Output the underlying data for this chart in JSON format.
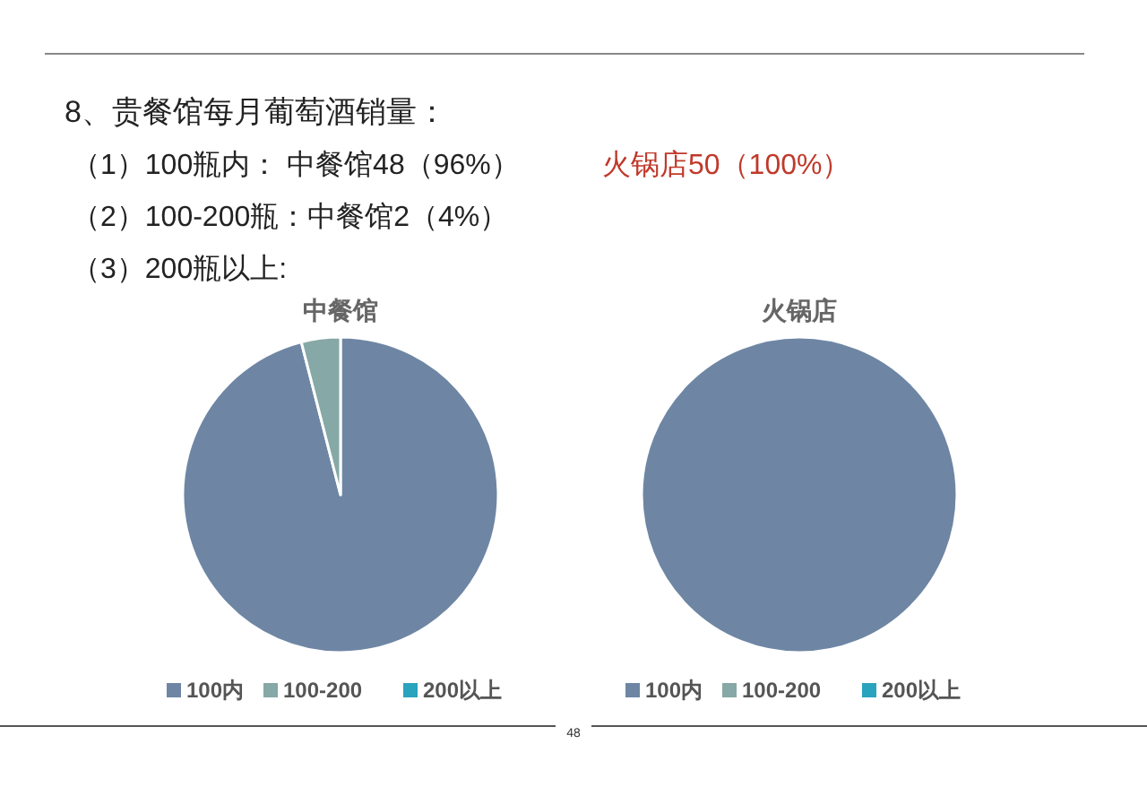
{
  "chart_data": [
    {
      "type": "other",
      "title": "8、贵餐馆每月葡萄酒销量：",
      "annotations": [
        "（1）100瓶内：    中餐馆48（96%）",
        "火锅店50（100%）",
        "（2）100-200瓶：中餐馆2（4%）",
        "（3）200瓶以上:",
        "48"
      ]
    },
    {
      "type": "pie",
      "title": "中餐馆",
      "categories": [
        "100内",
        "100-200",
        "200以上"
      ],
      "values": [
        96,
        4,
        0
      ],
      "colors": [
        "#6e86a4",
        "#86a8a6",
        "#2aa3be"
      ],
      "legend": "bottom"
    },
    {
      "type": "pie",
      "title": "火锅店",
      "categories": [
        "100内",
        "100-200",
        "200以上"
      ],
      "values": [
        100,
        0,
        0
      ],
      "colors": [
        "#6e86a4",
        "#86a8a6",
        "#2aa3be"
      ],
      "legend": "bottom"
    }
  ]
}
